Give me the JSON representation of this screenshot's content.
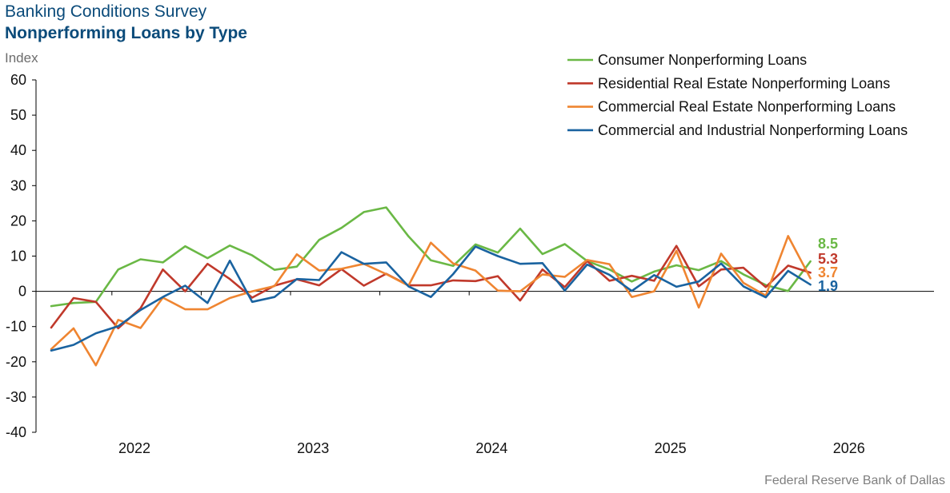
{
  "header": {
    "title": "Banking Conditions Survey",
    "subtitle": "Nonperforming Loans by Type"
  },
  "footer": {
    "source": "Federal Reserve Bank of Dallas"
  },
  "chart_data": {
    "type": "line",
    "ylabel": "Index",
    "ylim": [
      -40,
      60
    ],
    "yticks": [
      60,
      50,
      40,
      30,
      20,
      10,
      0,
      -10,
      -20,
      -30,
      -40
    ],
    "x_labels": [
      "2022",
      "2023",
      "2024",
      "2025",
      "2026"
    ],
    "x_range": [
      "2021-Q3",
      "2026-Q4"
    ],
    "legend_position": "top-right",
    "grid": false,
    "series": [
      {
        "name": "Consumer Nonperforming Loans",
        "color": "#6ab845",
        "end_label": "8.5",
        "values": [
          -4.2,
          -3.3,
          -3.0,
          6.2,
          9.1,
          8.2,
          12.8,
          9.4,
          13.0,
          10.2,
          6.1,
          7.0,
          14.6,
          18.0,
          22.5,
          23.8,
          15.6,
          8.8,
          7.2,
          13.3,
          11.0,
          17.8,
          10.6,
          13.4,
          8.6,
          6.2,
          2.8,
          5.6,
          7.4,
          6.0,
          8.6,
          4.8,
          1.8,
          0.1,
          8.5
        ]
      },
      {
        "name": "Residential Real Estate Nonperforming Loans",
        "color": "#c0392b",
        "end_label": "5.3",
        "values": [
          -10.3,
          -1.9,
          -3.0,
          -10.5,
          -4.8,
          6.2,
          0.0,
          7.8,
          3.5,
          -1.8,
          1.6,
          3.4,
          1.7,
          6.3,
          1.6,
          5.0,
          1.7,
          1.7,
          3.1,
          2.9,
          4.3,
          -2.6,
          6.2,
          1.2,
          8.6,
          3.0,
          4.4,
          3.0,
          12.9,
          1.4,
          6.2,
          6.7,
          1.2,
          7.3,
          5.3
        ]
      },
      {
        "name": "Commercial Real Estate Nonperforming Loans",
        "color": "#ef8531",
        "end_label": "3.7",
        "values": [
          -16.4,
          -10.5,
          -21.0,
          -8.1,
          -10.4,
          -1.8,
          -5.1,
          -5.1,
          -1.9,
          0.0,
          1.5,
          10.5,
          5.9,
          6.4,
          7.8,
          4.9,
          1.6,
          13.8,
          7.9,
          5.9,
          0.2,
          0.0,
          4.8,
          4.1,
          8.9,
          7.7,
          -1.6,
          0.0,
          11.5,
          -4.6,
          10.7,
          2.4,
          -1.2,
          15.7,
          3.7
        ]
      },
      {
        "name": "Commercial and Industrial Nonperforming Loans",
        "color": "#1a63a0",
        "end_label": "1.9",
        "values": [
          -16.8,
          -15.2,
          -11.9,
          -9.9,
          -5.3,
          -1.6,
          1.6,
          -3.3,
          8.7,
          -3.0,
          -1.6,
          3.5,
          3.2,
          11.1,
          7.8,
          8.2,
          1.4,
          -1.6,
          4.9,
          12.7,
          10.0,
          7.8,
          8.0,
          0.2,
          7.6,
          4.7,
          0.1,
          4.6,
          1.3,
          2.8,
          7.9,
          1.4,
          -1.7,
          5.8,
          1.9
        ]
      }
    ]
  }
}
